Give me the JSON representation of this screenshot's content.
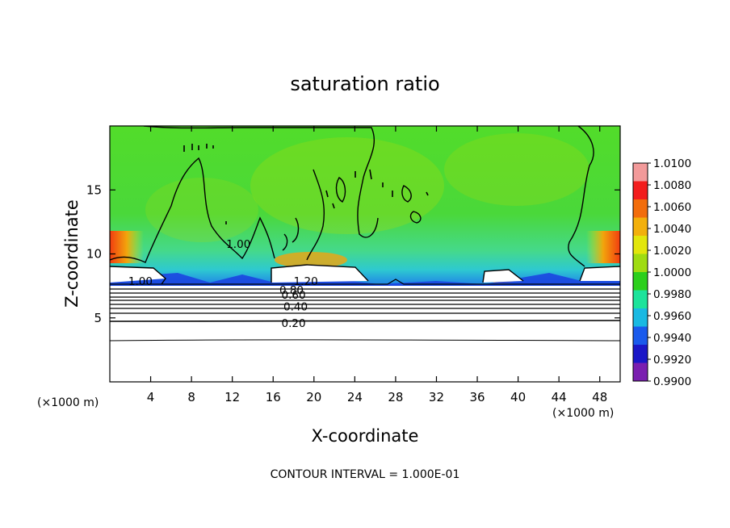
{
  "chart_data": {
    "type": "heatmap",
    "title": "saturation ratio",
    "xlabel": "X-coordinate",
    "ylabel": "Z-coordinate",
    "x_unit": "(×1000 m)",
    "xlim": [
      0,
      50
    ],
    "ylim": [
      0,
      20
    ],
    "x_ticks": [
      4,
      8,
      12,
      16,
      20,
      24,
      28,
      32,
      36,
      40,
      44,
      48
    ],
    "y_ticks": [
      5,
      10,
      15
    ],
    "footer": "CONTOUR INTERVAL = 1.000E-01",
    "colorbar": {
      "labels": [
        "1.0100",
        "1.0080",
        "1.0060",
        "1.0040",
        "1.0020",
        "1.0000",
        "0.9980",
        "0.9960",
        "0.9940",
        "0.9920",
        "0.9900"
      ],
      "colors": [
        "#f29a9a",
        "#f21d1d",
        "#f26d0c",
        "#f2b00c",
        "#e2e60c",
        "#9fdc12",
        "#2ccf1c",
        "#1ce39b",
        "#19b9e2",
        "#1a5aec",
        "#1a17c7",
        "#7a1fb0"
      ]
    },
    "contour_labels": [
      {
        "text": "1.00",
        "x": 3.0,
        "z": 7.9
      },
      {
        "text": "1.00",
        "x": 12.6,
        "z": 10.8
      },
      {
        "text": "1.20",
        "x": 19.2,
        "z": 7.9
      },
      {
        "text": "0.80",
        "x": 17.8,
        "z": 7.2
      },
      {
        "text": "0.60",
        "x": 18.0,
        "z": 6.8
      },
      {
        "text": "0.40",
        "x": 18.2,
        "z": 5.9
      },
      {
        "text": "0.20",
        "x": 18.0,
        "z": 4.6
      }
    ],
    "contour_levels_z": [
      8.1,
      7.6,
      7.2,
      6.9,
      6.6,
      6.3,
      6.0,
      5.6,
      4.8,
      3.4
    ]
  }
}
